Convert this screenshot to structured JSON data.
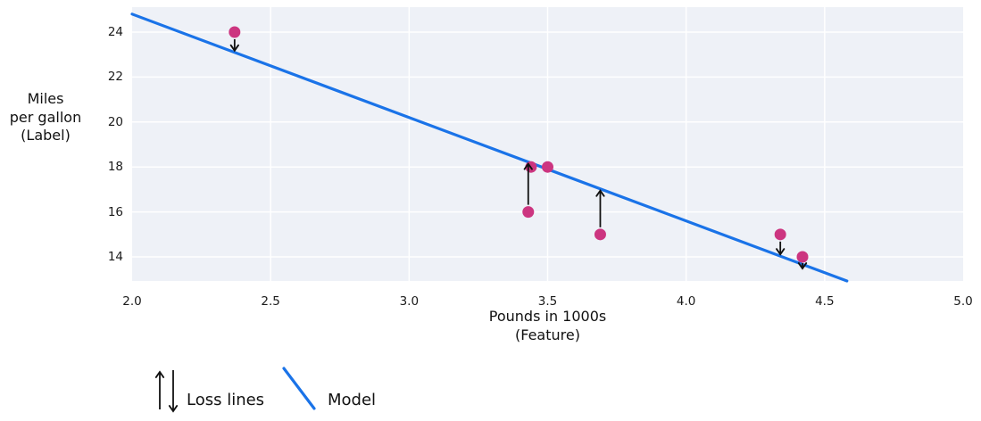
{
  "figure": {
    "background": "#ffffff",
    "plot_bg": "#eef1f7",
    "grid_color": "#ffffff",
    "model_color": "#1a73e8",
    "point_color": "#cc3580",
    "arrow_color": "#111111"
  },
  "chart_data": {
    "type": "scatter",
    "title": "",
    "xlabel_lines": [
      "Pounds in 1000s",
      "(Feature)"
    ],
    "ylabel_lines": [
      "Miles",
      "per gallon",
      "(Label)"
    ],
    "xlim": [
      2.0,
      5.0
    ],
    "ylim": [
      12.93,
      25.11
    ],
    "grid": true,
    "xticks": [
      {
        "v": 2.0,
        "label": "2.0"
      },
      {
        "v": 2.5,
        "label": "2.5"
      },
      {
        "v": 3.0,
        "label": "3.0"
      },
      {
        "v": 3.5,
        "label": "3.5"
      },
      {
        "v": 4.0,
        "label": "4.0"
      },
      {
        "v": 4.5,
        "label": "4.5"
      },
      {
        "v": 5.0,
        "label": "5.0"
      }
    ],
    "yticks": [
      {
        "v": 24,
        "label": "24"
      },
      {
        "v": 22,
        "label": "22"
      },
      {
        "v": 20,
        "label": "20"
      },
      {
        "v": 18,
        "label": "18"
      },
      {
        "v": 16,
        "label": "16"
      },
      {
        "v": 14,
        "label": "14"
      }
    ],
    "points": [
      {
        "x": 2.37,
        "y": 24
      },
      {
        "x": 3.43,
        "y": 16
      },
      {
        "x": 3.44,
        "y": 18
      },
      {
        "x": 3.5,
        "y": 18
      },
      {
        "x": 3.69,
        "y": 15
      },
      {
        "x": 4.34,
        "y": 15
      },
      {
        "x": 4.42,
        "y": 14
      }
    ],
    "model": {
      "intercept": 34,
      "slope": -4.6,
      "x_start": 2.0
    },
    "loss_arrows": [
      {
        "x": 2.37,
        "from": 24,
        "dir": "down"
      },
      {
        "x": 3.43,
        "from": 16,
        "dir": "up"
      },
      {
        "x": 3.69,
        "from": 15,
        "dir": "up"
      },
      {
        "x": 4.34,
        "from": 15,
        "dir": "down"
      },
      {
        "x": 4.42,
        "from": 14,
        "dir": "down"
      }
    ],
    "legend": [
      {
        "label": "Loss lines",
        "symbol": "arrows"
      },
      {
        "label": "Model",
        "symbol": "line"
      }
    ]
  }
}
